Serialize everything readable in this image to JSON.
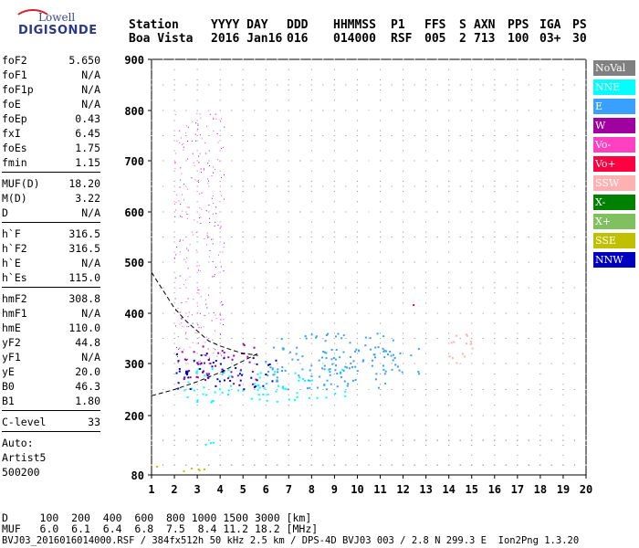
{
  "logo": {
    "line1": "Lowell",
    "line2": "DIGISONDE"
  },
  "header": {
    "col_station": [
      "Station",
      "Boa Vista"
    ],
    "col_yyyy_day": [
      "YYYY DAY",
      "2016 Jan16"
    ],
    "col_ddd": [
      "DDD",
      "016"
    ],
    "col_hhmmss": [
      "HHMMSS",
      "014000"
    ],
    "col_p1": [
      "P1",
      "RSF"
    ],
    "col_ffs": [
      "FFS",
      "005"
    ],
    "col_s": [
      "S",
      "2"
    ],
    "col_axn": [
      "AXN",
      "713"
    ],
    "col_pps": [
      "PPS",
      "100"
    ],
    "col_iga": [
      "IGA",
      "03+"
    ],
    "col_ps": [
      "PS",
      "30"
    ]
  },
  "params": {
    "group1": [
      {
        "label": "foF2",
        "value": "5.650"
      },
      {
        "label": "foF1",
        "value": "N/A"
      },
      {
        "label": "foF1p",
        "value": "N/A"
      },
      {
        "label": "foE",
        "value": "N/A"
      },
      {
        "label": "foEp",
        "value": "0.43"
      },
      {
        "label": "fxI",
        "value": "6.45"
      },
      {
        "label": "foEs",
        "value": "1.75"
      },
      {
        "label": "fmin",
        "value": "1.15"
      }
    ],
    "group2": [
      {
        "label": "MUF(D)",
        "value": "18.20"
      },
      {
        "label": "M(D)",
        "value": "3.22"
      },
      {
        "label": "D",
        "value": "N/A"
      }
    ],
    "group3": [
      {
        "label": "h`F",
        "value": "316.5"
      },
      {
        "label": "h`F2",
        "value": "316.5"
      },
      {
        "label": "h`E",
        "value": "N/A"
      },
      {
        "label": "h`Es",
        "value": "115.0"
      }
    ],
    "group4": [
      {
        "label": "hmF2",
        "value": "308.8"
      },
      {
        "label": "hmF1",
        "value": "N/A"
      },
      {
        "label": "hmE",
        "value": "110.0"
      },
      {
        "label": "yF2",
        "value": "44.8"
      },
      {
        "label": "yF1",
        "value": "N/A"
      },
      {
        "label": "yE",
        "value": "20.0"
      },
      {
        "label": "B0",
        "value": "46.3"
      },
      {
        "label": "B1",
        "value": "1.80"
      }
    ],
    "group5": [
      {
        "label": "C-level",
        "value": "33"
      }
    ],
    "auto": [
      "Auto:",
      "Artist5",
      "500200"
    ]
  },
  "legend": [
    {
      "label": "NoVal",
      "color": "#808080"
    },
    {
      "label": "NNE",
      "color": "#00ffff"
    },
    {
      "label": "E",
      "color": "#3aa0ff"
    },
    {
      "label": "W",
      "color": "#a000a0"
    },
    {
      "label": "Vo-",
      "color": "#ff40c0"
    },
    {
      "label": "Vo+",
      "color": "#ff0040"
    },
    {
      "label": "SSW",
      "color": "#ffb0b0"
    },
    {
      "label": "X-",
      "color": "#008000"
    },
    {
      "label": "X+",
      "color": "#80c060"
    },
    {
      "label": "SSE",
      "color": "#c0c000"
    },
    {
      "label": "NNW",
      "color": "#0000c0"
    }
  ],
  "bottom": {
    "d_line": "D     100  200  400  600  800 1000 1500 3000 [km]",
    "muf_line": "MUF   6.0  6.1  6.4  6.8  7.5  8.4 11.2 18.2 [MHz]",
    "file_line": "BVJ03_2016016014000.RSF / 384fx512h 50 kHz 2.5 km / DPS-4D BVJ03 003 / 2.8 N 299.3 E  Ion2Png 1.3.20"
  },
  "chart_data": {
    "type": "scatter",
    "title": "",
    "xlabel": "",
    "ylabel": "",
    "xlim": [
      1,
      20
    ],
    "ylim": [
      80,
      900
    ],
    "x_ticks": [
      "1",
      "2",
      "3",
      "4",
      "5",
      "6",
      "7",
      "8",
      "9",
      "10",
      "11",
      "12",
      "13",
      "14",
      "15",
      "16",
      "17",
      "18",
      "19",
      "20"
    ],
    "y_ticks": [
      "80",
      "200",
      "300",
      "400",
      "500",
      "600",
      "700",
      "800",
      "900"
    ],
    "grid": true,
    "trace": [
      [
        1.0,
        480
      ],
      [
        1.5,
        445
      ],
      [
        2.0,
        410
      ],
      [
        2.5,
        385
      ],
      [
        3.0,
        365
      ],
      [
        3.5,
        345
      ],
      [
        4.0,
        335
      ],
      [
        4.5,
        327
      ],
      [
        5.0,
        320
      ],
      [
        5.4,
        318
      ],
      [
        5.65,
        316
      ]
    ],
    "trace_low": [
      [
        1.0,
        238
      ],
      [
        2.0,
        250
      ],
      [
        3.0,
        265
      ],
      [
        4.0,
        283
      ],
      [
        5.0,
        305
      ],
      [
        5.65,
        320
      ]
    ],
    "clusters": [
      {
        "name": "NNE",
        "x": [
          2.4,
          9.8
        ],
        "y": [
          225,
          290
        ]
      },
      {
        "name": "E",
        "x": [
          6.0,
          11.8
        ],
        "y": [
          250,
          360
        ]
      },
      {
        "name": "NNW",
        "x": [
          2.1,
          6.6
        ],
        "y": [
          250,
          320
        ]
      },
      {
        "name": "W",
        "x": [
          2.2,
          5.6
        ],
        "y": [
          260,
          340
        ]
      },
      {
        "name": "E",
        "x": [
          8.0,
          12.8
        ],
        "y": [
          280,
          330
        ]
      },
      {
        "name": "SSW",
        "x": [
          14.0,
          15.2
        ],
        "y": [
          290,
          360
        ]
      },
      {
        "name": "Vo+",
        "x": [
          12.0,
          12.6
        ],
        "y": [
          405,
          420
        ]
      },
      {
        "name": "NNE",
        "x": [
          2.0,
          4.0
        ],
        "y": [
          140,
          150
        ]
      },
      {
        "name": "SSE",
        "x": [
          1.0,
          3.5
        ],
        "y": [
          85,
          100
        ]
      }
    ]
  }
}
